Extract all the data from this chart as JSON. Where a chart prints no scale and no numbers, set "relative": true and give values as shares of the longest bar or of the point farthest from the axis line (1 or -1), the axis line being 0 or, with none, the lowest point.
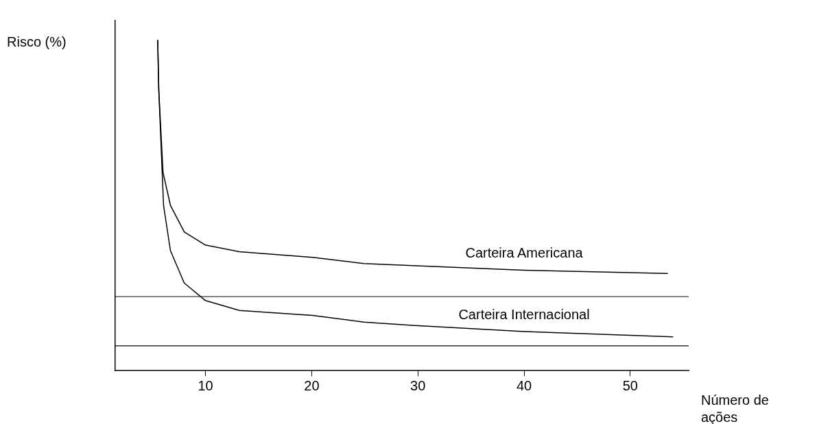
{
  "chart_data": {
    "type": "line",
    "relative": true,
    "xlabel": "Número de ações",
    "ylabel": "Risco (%)",
    "xlim": [
      1.5,
      55.5
    ],
    "xticks": [
      10,
      20,
      30,
      40,
      50
    ],
    "grid": false,
    "legend": false,
    "marker": "none",
    "line_style": "solid",
    "series": [
      {
        "name": "Carteira Americana",
        "color": "#000000",
        "x": [
          5.5,
          5.6,
          6.0,
          6.7,
          8.0,
          10,
          13.2,
          20.1,
          24.9,
          29.5,
          40,
          53.5
        ],
        "values": [
          1.0,
          0.85,
          0.6,
          0.5,
          0.42,
          0.38,
          0.36,
          0.343,
          0.324,
          0.318,
          0.304,
          0.294
        ]
      },
      {
        "name": "Carteira Internacional",
        "color": "#000000",
        "x": [
          5.5,
          5.6,
          6.05,
          6.7,
          8.0,
          10,
          13.2,
          20.1,
          24.9,
          29.5,
          40,
          54
        ],
        "values": [
          1.0,
          0.85,
          0.5,
          0.363,
          0.265,
          0.212,
          0.182,
          0.167,
          0.147,
          0.137,
          0.118,
          0.102
        ]
      }
    ],
    "ref_lines": [
      {
        "axis": "y",
        "value": 0.224,
        "color": "#000000"
      },
      {
        "axis": "y",
        "value": 0.075,
        "color": "#000000"
      }
    ]
  }
}
